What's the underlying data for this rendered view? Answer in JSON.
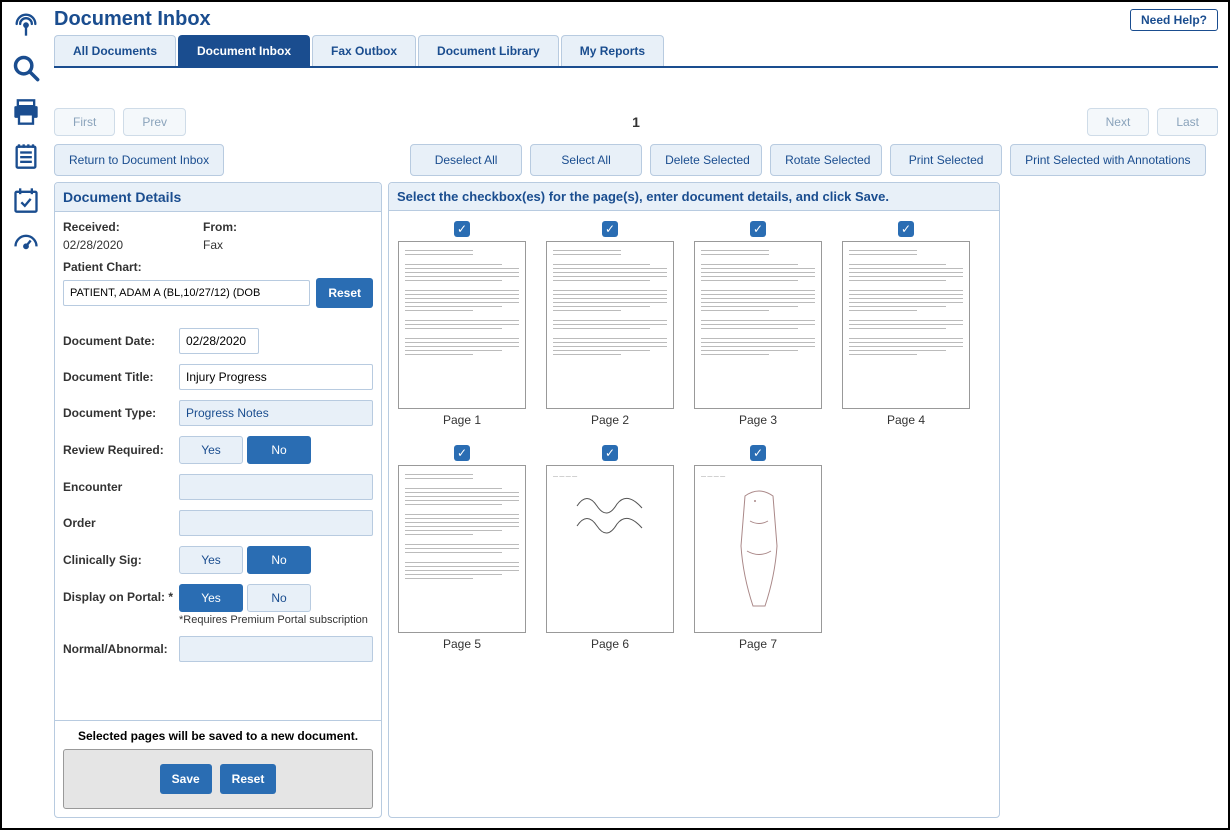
{
  "header": {
    "title": "Document Inbox",
    "help_label": "Need Help?"
  },
  "tabs": [
    {
      "label": "All Documents",
      "active": false
    },
    {
      "label": "Document Inbox",
      "active": true
    },
    {
      "label": "Fax Outbox",
      "active": false
    },
    {
      "label": "Document Library",
      "active": false
    },
    {
      "label": "My Reports",
      "active": false
    }
  ],
  "pager": {
    "first": "First",
    "prev": "Prev",
    "current": "1",
    "next": "Next",
    "last": "Last"
  },
  "actions": {
    "return": "Return to Document Inbox",
    "deselect_all": "Deselect All",
    "select_all": "Select All",
    "delete_selected": "Delete Selected",
    "rotate_selected": "Rotate Selected",
    "print_selected": "Print Selected",
    "print_annot": "Print Selected with Annotations"
  },
  "details": {
    "header": "Document Details",
    "received_label": "Received:",
    "from_label": "From:",
    "received_value": "02/28/2020",
    "from_value": "Fax",
    "patient_chart_label": "Patient Chart:",
    "patient_chart_value": "PATIENT, ADAM A (BL,10/27/12) (DOB",
    "reset_label": "Reset",
    "doc_date_label": "Document Date:",
    "doc_date_value": "02/28/2020",
    "doc_title_label": "Document Title:",
    "doc_title_value": "Injury Progress",
    "doc_type_label": "Document Type:",
    "doc_type_value": "Progress Notes",
    "review_req_label": "Review Required:",
    "encounter_label": "Encounter",
    "order_label": "Order",
    "clin_sig_label": "Clinically Sig:",
    "portal_label": "Display on Portal: *",
    "portal_note": "*Requires Premium Portal subscription",
    "normal_label": "Normal/Abnormal:",
    "yes": "Yes",
    "no": "No",
    "save_note": "Selected pages will be saved to a new document.",
    "save_label": "Save"
  },
  "pages_panel": {
    "header": "Select the checkbox(es) for the page(s), enter document details, and click Save."
  },
  "pages": [
    {
      "label": "Page 1",
      "checked": true,
      "style": "text"
    },
    {
      "label": "Page 2",
      "checked": true,
      "style": "text"
    },
    {
      "label": "Page 3",
      "checked": true,
      "style": "text"
    },
    {
      "label": "Page 4",
      "checked": true,
      "style": "text"
    },
    {
      "label": "Page 5",
      "checked": true,
      "style": "text"
    },
    {
      "label": "Page 6",
      "checked": true,
      "style": "signature"
    },
    {
      "label": "Page 7",
      "checked": true,
      "style": "body"
    }
  ],
  "sidebar_icons": [
    "broadcast-icon",
    "search-icon",
    "print-icon",
    "notes-icon",
    "calendar-check-icon",
    "gauge-icon"
  ]
}
